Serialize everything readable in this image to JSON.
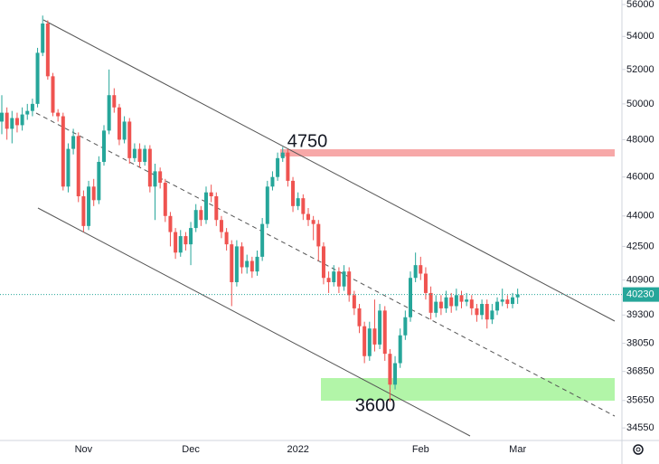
{
  "chart_data": {
    "type": "candlestick",
    "categories": [
      null,
      null,
      null,
      null,
      null,
      null,
      null,
      null,
      null,
      null,
      null,
      null,
      null,
      null,
      null,
      null,
      "Nov",
      null,
      null,
      null,
      null,
      null,
      null,
      null,
      null,
      null,
      null,
      null,
      null,
      null,
      null,
      null,
      null,
      null,
      null,
      null,
      null,
      "Dec",
      null,
      null,
      null,
      null,
      null,
      null,
      null,
      null,
      null,
      null,
      null,
      null,
      null,
      null,
      null,
      null,
      null,
      null,
      null,
      null,
      "2022",
      null,
      null,
      null,
      null,
      null,
      null,
      null,
      null,
      null,
      null,
      null,
      null,
      null,
      null,
      null,
      null,
      null,
      null,
      null,
      null,
      null,
      null,
      null,
      "Feb",
      null,
      null,
      null,
      null,
      null,
      null,
      null,
      null,
      null,
      null,
      null,
      null,
      null,
      null,
      null,
      null,
      null,
      null,
      "Mar"
    ],
    "open": [
      49000,
      49500,
      48600,
      49200,
      48800,
      49400,
      49600,
      50000,
      53000,
      54800,
      51600,
      49500,
      49300,
      45500,
      47500,
      48200,
      45000,
      43500,
      45500,
      44800,
      46800,
      48500,
      50500,
      49800,
      48000,
      49000,
      47000,
      47500,
      46800,
      47500,
      45500,
      46300,
      45700,
      44000,
      43200,
      42200,
      43000,
      42600,
      43400,
      44300,
      43800,
      45200,
      45000,
      43800,
      43200,
      42600,
      40800,
      42500,
      41500,
      41800,
      41300,
      42000,
      43600,
      45500,
      46000,
      47000,
      47300,
      45800,
      44500,
      44900,
      44100,
      43800,
      43600,
      42500,
      41000,
      40800,
      41300,
      40600,
      41300,
      40200,
      39600,
      38800,
      37500,
      38700,
      38000,
      39500,
      37600,
      36300,
      37200,
      38400,
      39200,
      41000,
      41600,
      41200,
      40300,
      39400,
      39900,
      39600,
      40100,
      39700,
      40200,
      39900,
      40000,
      39600,
      39300,
      39800,
      39100,
      39500,
      39900,
      40000,
      39800,
      40100
    ],
    "high": [
      50500,
      49800,
      49600,
      49500,
      49800,
      50000,
      50300,
      53300,
      55300,
      55000,
      51800,
      49700,
      49500,
      47800,
      48600,
      48400,
      45300,
      45800,
      45900,
      47100,
      48800,
      52000,
      50900,
      50000,
      49300,
      49200,
      47800,
      47800,
      47700,
      47700,
      46700,
      46500,
      45900,
      44200,
      43400,
      43300,
      43200,
      43700,
      44600,
      44500,
      45500,
      45600,
      45200,
      44000,
      43400,
      42800,
      42800,
      42700,
      42100,
      42000,
      42300,
      43900,
      45800,
      46300,
      47300,
      47600,
      47500,
      46000,
      45200,
      45100,
      44400,
      44000,
      43800,
      42700,
      41300,
      41600,
      41500,
      41600,
      41500,
      40400,
      39800,
      39000,
      39000,
      40000,
      39800,
      39700,
      37800,
      37500,
      38700,
      39500,
      41300,
      42200,
      42000,
      41500,
      40600,
      40200,
      40200,
      40400,
      40300,
      40500,
      40400,
      40300,
      40200,
      39800,
      40000,
      40000,
      39800,
      40100,
      40500,
      40200,
      40300,
      40500
    ],
    "low": [
      48300,
      48000,
      47800,
      48400,
      48500,
      49100,
      49300,
      49800,
      52800,
      51400,
      49300,
      49000,
      45300,
      45200,
      47200,
      44700,
      43200,
      43300,
      44500,
      44600,
      46600,
      48300,
      49500,
      47700,
      47800,
      46700,
      46800,
      46500,
      46600,
      45200,
      43800,
      45400,
      43700,
      42500,
      41900,
      42000,
      42300,
      41600,
      43200,
      43500,
      43600,
      44700,
      43500,
      42900,
      42300,
      39700,
      40600,
      41200,
      41200,
      41000,
      41100,
      41800,
      43400,
      45300,
      45800,
      46800,
      45500,
      44200,
      44300,
      43800,
      43500,
      42800,
      41800,
      40700,
      40300,
      40600,
      40300,
      40400,
      39900,
      39300,
      38500,
      37200,
      37300,
      37700,
      37800,
      37300,
      35600,
      36100,
      37000,
      38200,
      39000,
      40800,
      40900,
      40000,
      39100,
      39200,
      39300,
      39400,
      39400,
      39500,
      39600,
      39700,
      39300,
      39000,
      39100,
      38700,
      38900,
      39300,
      39700,
      39600,
      39600,
      39800
    ],
    "close": [
      49500,
      48600,
      49200,
      48800,
      49400,
      49600,
      50000,
      53000,
      54800,
      51600,
      49500,
      49300,
      45500,
      47500,
      48200,
      45000,
      43500,
      45500,
      44800,
      46800,
      48500,
      50500,
      49800,
      48000,
      49000,
      47000,
      47500,
      46800,
      47500,
      45500,
      46300,
      45700,
      44000,
      43200,
      42200,
      43000,
      42600,
      43400,
      44300,
      43800,
      45200,
      45000,
      43800,
      43200,
      42600,
      40800,
      42500,
      41500,
      41800,
      41300,
      42000,
      43600,
      45500,
      46000,
      47000,
      47300,
      45800,
      44500,
      44900,
      44100,
      43800,
      43600,
      42500,
      41000,
      40800,
      41300,
      40600,
      41300,
      40200,
      39600,
      38800,
      37500,
      38700,
      38000,
      39500,
      37600,
      36300,
      37200,
      38400,
      39200,
      41000,
      41600,
      41200,
      40300,
      39400,
      39900,
      39600,
      40100,
      39700,
      40200,
      39900,
      40000,
      39600,
      39300,
      39800,
      39100,
      39500,
      39900,
      40000,
      39800,
      40100,
      40230
    ],
    "up_color": "#26a69a",
    "down_color": "#ef5350",
    "ylim": [
      34060,
      56290
    ],
    "log_scale": true,
    "grid": false,
    "yticks": [
      56000,
      54000,
      52000,
      50000,
      48000,
      46000,
      44000,
      42500,
      40900,
      39300,
      38050,
      36850,
      35650,
      34550
    ],
    "last_price": 40230,
    "annotations": [
      "4750",
      "3600"
    ]
  }
}
